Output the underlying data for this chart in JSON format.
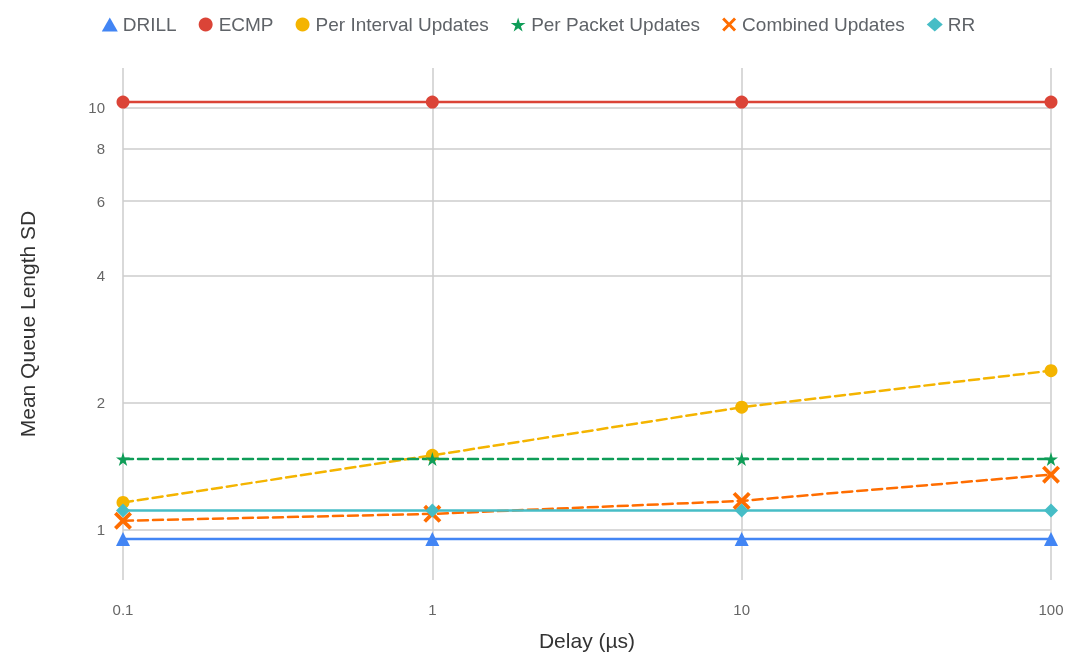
{
  "chart_data": {
    "type": "line",
    "xlabel": "Delay (µs)",
    "ylabel": "Mean Queue Length SD",
    "x": [
      0.1,
      1,
      10,
      100
    ],
    "log": "xy",
    "grid": true,
    "legend": "top",
    "xlim": [
      0.1,
      100
    ],
    "xticks": [
      0.1,
      1,
      10,
      100
    ],
    "ylim": [
      0.76,
      12.4
    ],
    "yticks": [
      1,
      2,
      4,
      6,
      8,
      10
    ],
    "series": [
      {
        "name": "DRILL",
        "color": "#4285f4",
        "marker": "triangle",
        "line_style": "solid",
        "values": [
          0.95,
          0.95,
          0.95,
          0.95
        ]
      },
      {
        "name": "ECMP",
        "color": "#db4437",
        "marker": "circle",
        "line_style": "solid",
        "values": [
          10.3,
          10.3,
          10.3,
          10.3
        ]
      },
      {
        "name": "Per Interval Updates",
        "color": "#f4b400",
        "marker": "circle",
        "line_style": "dashed",
        "values": [
          1.16,
          1.5,
          1.95,
          2.38
        ]
      },
      {
        "name": "Per Packet Updates",
        "color": "#0f9d58",
        "marker": "star",
        "line_style": "dashed",
        "values": [
          1.47,
          1.47,
          1.47,
          1.47
        ]
      },
      {
        "name": "Combined Updates",
        "color": "#ff6d00",
        "marker": "cross",
        "line_style": "dashed",
        "values": [
          1.05,
          1.09,
          1.17,
          1.35
        ]
      },
      {
        "name": "RR",
        "color": "#46bdc6",
        "marker": "diamond",
        "line_style": "solid",
        "values": [
          1.11,
          1.11,
          1.11,
          1.11
        ]
      }
    ]
  }
}
